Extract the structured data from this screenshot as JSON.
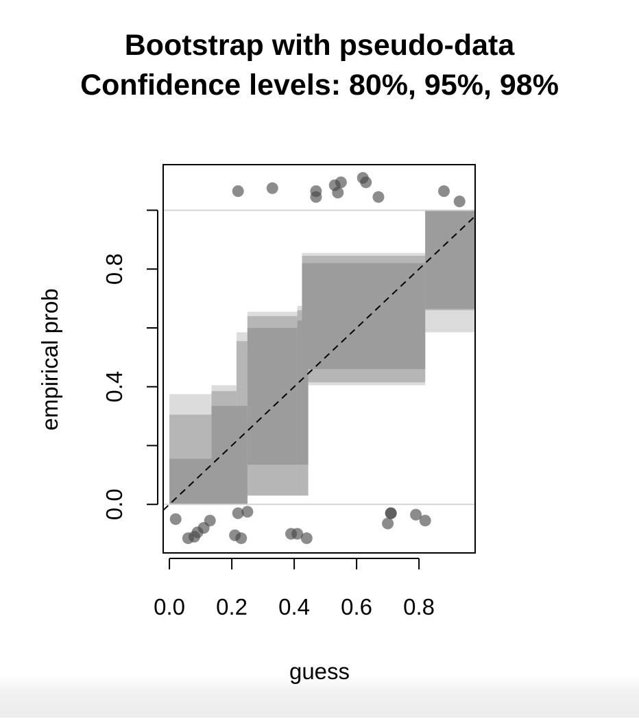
{
  "chart_data": {
    "type": "scatter",
    "title": "Bootstrap with pseudo-data",
    "subtitle": "Confidence levels: 80%, 95%, 98%",
    "xlabel": "guess",
    "ylabel": "empirical prob",
    "xlim": [
      -0.02,
      0.98
    ],
    "ylim": [
      -0.165,
      1.155
    ],
    "x_ticks": [
      {
        "value": 0.0,
        "label": "0.0"
      },
      {
        "value": 0.2,
        "label": "0.2"
      },
      {
        "value": 0.4,
        "label": "0.4"
      },
      {
        "value": 0.6,
        "label": "0.6"
      },
      {
        "value": 0.8,
        "label": "0.8"
      }
    ],
    "y_ticks": [
      {
        "value": 0.0,
        "label": "0.0"
      },
      {
        "value": 0.2,
        "label": ""
      },
      {
        "value": 0.4,
        "label": "0.4"
      },
      {
        "value": 0.6,
        "label": ""
      },
      {
        "value": 0.8,
        "label": "0.8"
      },
      {
        "value": 1.0,
        "label": ""
      }
    ],
    "reference_lines": [
      0,
      1
    ],
    "diagonal": {
      "from": [
        0,
        0
      ],
      "to": [
        1,
        1
      ],
      "style": "dashed"
    },
    "confidence_bands": [
      {
        "level": "98%",
        "color": "#dcdcdc",
        "steps": [
          {
            "x0": 0.0,
            "x1": 0.135,
            "lo": 0.0,
            "hi": 0.375
          },
          {
            "x0": 0.135,
            "x1": 0.215,
            "lo": 0.0,
            "hi": 0.405
          },
          {
            "x0": 0.215,
            "x1": 0.25,
            "lo": 0.0,
            "hi": 0.585
          },
          {
            "x0": 0.25,
            "x1": 0.41,
            "lo": 0.03,
            "hi": 0.655
          },
          {
            "x0": 0.41,
            "x1": 0.425,
            "lo": 0.03,
            "hi": 0.675
          },
          {
            "x0": 0.425,
            "x1": 0.445,
            "lo": 0.03,
            "hi": 0.855
          },
          {
            "x0": 0.445,
            "x1": 0.82,
            "lo": 0.405,
            "hi": 0.855
          },
          {
            "x0": 0.82,
            "x1": 1.0,
            "lo": 0.585,
            "hi": 1.0
          }
        ]
      },
      {
        "level": "95%",
        "color": "#b6b6b6",
        "steps": [
          {
            "x0": 0.0,
            "x1": 0.135,
            "lo": 0.0,
            "hi": 0.305
          },
          {
            "x0": 0.135,
            "x1": 0.215,
            "lo": 0.0,
            "hi": 0.385
          },
          {
            "x0": 0.215,
            "x1": 0.25,
            "lo": 0.0,
            "hi": 0.555
          },
          {
            "x0": 0.25,
            "x1": 0.41,
            "lo": 0.03,
            "hi": 0.64
          },
          {
            "x0": 0.41,
            "x1": 0.425,
            "lo": 0.03,
            "hi": 0.66
          },
          {
            "x0": 0.425,
            "x1": 0.445,
            "lo": 0.03,
            "hi": 0.845
          },
          {
            "x0": 0.445,
            "x1": 0.82,
            "lo": 0.415,
            "hi": 0.845
          },
          {
            "x0": 0.82,
            "x1": 1.0,
            "lo": 0.66,
            "hi": 1.0
          }
        ]
      },
      {
        "level": "80%",
        "color": "#9c9c9c",
        "steps": [
          {
            "x0": 0.0,
            "x1": 0.135,
            "lo": 0.0,
            "hi": 0.155
          },
          {
            "x0": 0.135,
            "x1": 0.25,
            "lo": 0.0,
            "hi": 0.335
          },
          {
            "x0": 0.25,
            "x1": 0.41,
            "lo": 0.135,
            "hi": 0.6
          },
          {
            "x0": 0.41,
            "x1": 0.425,
            "lo": 0.135,
            "hi": 0.625
          },
          {
            "x0": 0.425,
            "x1": 0.445,
            "lo": 0.135,
            "hi": 0.82
          },
          {
            "x0": 0.445,
            "x1": 0.82,
            "lo": 0.46,
            "hi": 0.82
          },
          {
            "x0": 0.82,
            "x1": 1.0,
            "lo": 0.665,
            "hi": 1.0
          }
        ]
      }
    ],
    "point_color": "rgba(70,70,70,0.62)",
    "points": [
      {
        "x": 0.22,
        "y": 1.065
      },
      {
        "x": 0.33,
        "y": 1.075
      },
      {
        "x": 0.47,
        "y": 1.065
      },
      {
        "x": 0.47,
        "y": 1.045
      },
      {
        "x": 0.53,
        "y": 1.085
      },
      {
        "x": 0.54,
        "y": 1.06
      },
      {
        "x": 0.55,
        "y": 1.095
      },
      {
        "x": 0.62,
        "y": 1.11
      },
      {
        "x": 0.63,
        "y": 1.095
      },
      {
        "x": 0.67,
        "y": 1.045
      },
      {
        "x": 0.88,
        "y": 1.065
      },
      {
        "x": 0.93,
        "y": 1.03
      },
      {
        "x": 0.02,
        "y": -0.05
      },
      {
        "x": 0.06,
        "y": -0.115
      },
      {
        "x": 0.08,
        "y": -0.11
      },
      {
        "x": 0.09,
        "y": -0.095
      },
      {
        "x": 0.11,
        "y": -0.08
      },
      {
        "x": 0.13,
        "y": -0.055
      },
      {
        "x": 0.21,
        "y": -0.105
      },
      {
        "x": 0.22,
        "y": -0.03
      },
      {
        "x": 0.23,
        "y": -0.115
      },
      {
        "x": 0.25,
        "y": -0.025
      },
      {
        "x": 0.39,
        "y": -0.1
      },
      {
        "x": 0.41,
        "y": -0.1
      },
      {
        "x": 0.44,
        "y": -0.115
      },
      {
        "x": 0.7,
        "y": -0.065
      },
      {
        "x": 0.71,
        "y": -0.03
      },
      {
        "x": 0.71,
        "y": -0.03
      },
      {
        "x": 0.79,
        "y": -0.035
      },
      {
        "x": 0.82,
        "y": -0.055
      }
    ],
    "grid": false,
    "legend": "none"
  }
}
